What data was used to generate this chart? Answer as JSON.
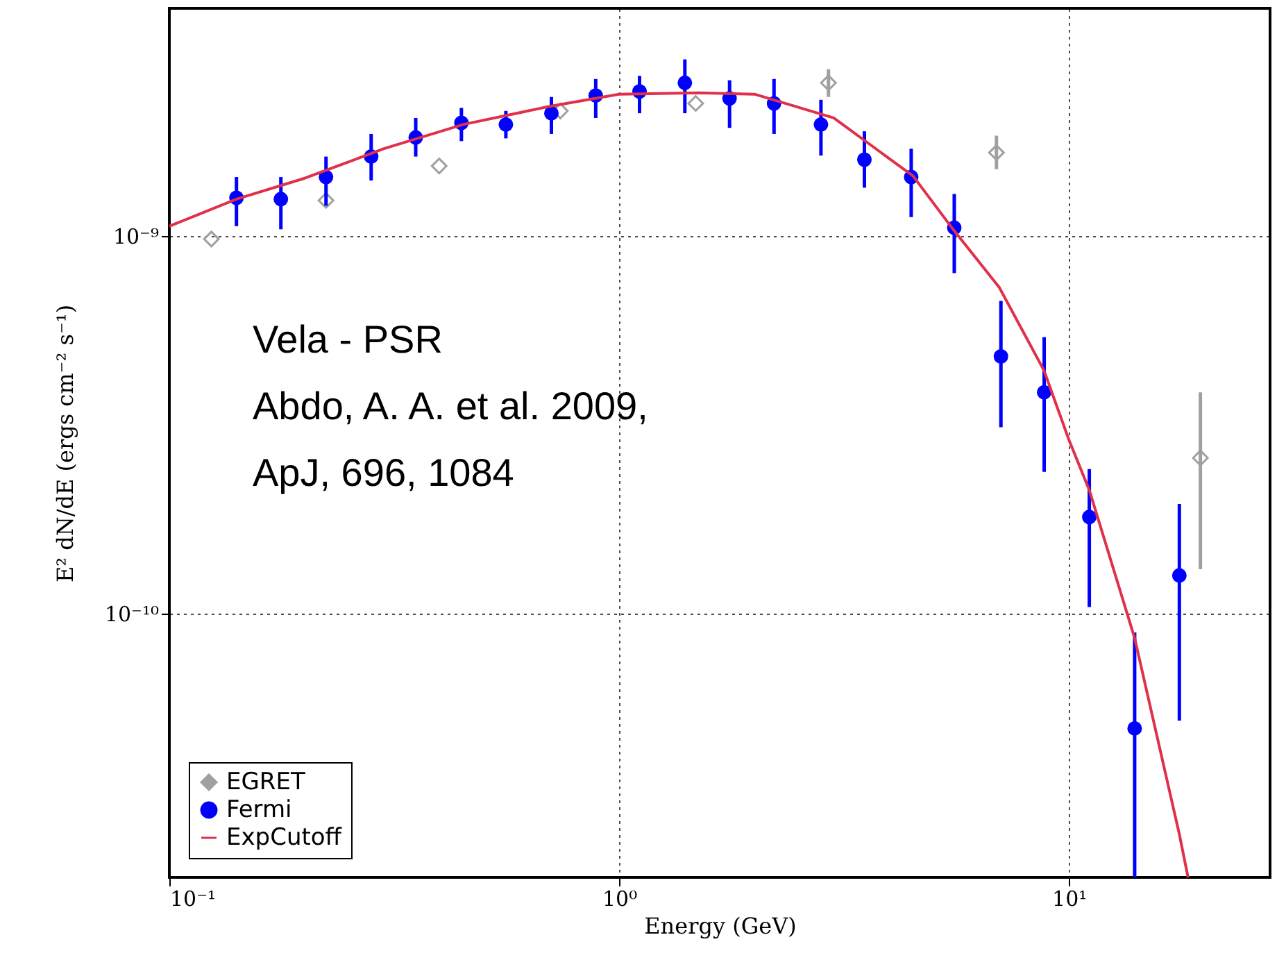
{
  "chart_data": {
    "type": "scatter",
    "xlabel": "Energy (GeV)",
    "ylabel": "E² dN/dE (ergs cm⁻² s⁻¹)",
    "log": "xy",
    "grid": true,
    "legend": "bottom left",
    "xlim": [
      0.1,
      28
    ],
    "ylim": [
      2e-11,
      4e-09
    ],
    "xticks": [
      {
        "value": 0.1,
        "label": "10⁻¹"
      },
      {
        "value": 1,
        "label": "10⁰"
      },
      {
        "value": 10,
        "label": "10¹"
      }
    ],
    "yticks": [
      {
        "value": 1e-10,
        "label": "10⁻¹⁰"
      },
      {
        "value": 1e-09,
        "label": "10⁻⁹"
      }
    ],
    "annotations": [
      "Vela - PSR",
      "Abdo, A. A. et al. 2009,",
      "ApJ, 696, 1084"
    ],
    "series": [
      {
        "name": "EGRET",
        "color": "#a0a0a0",
        "marker": "diamond",
        "x": [
          0.124,
          0.223,
          0.398,
          0.74,
          1.48,
          2.92,
          6.9,
          19.6
        ],
        "values": [
          9.8e-10,
          1.24e-09,
          1.53e-09,
          2.14e-09,
          2.24e-09,
          2.54e-09,
          1.66e-09,
          2.58e-10
        ],
        "errors": [
          null,
          null,
          null,
          null,
          null,
          [
            2.33e-09,
            2.76e-09
          ],
          [
            1.5e-09,
            1.84e-09
          ],
          [
            1.31e-10,
            3.85e-10
          ]
        ]
      },
      {
        "name": "Fermi",
        "color": "#0000ff",
        "marker": "circle",
        "x": [
          0.141,
          0.177,
          0.223,
          0.281,
          0.353,
          0.446,
          0.56,
          0.707,
          0.887,
          1.11,
          1.4,
          1.76,
          2.21,
          2.81,
          3.51,
          4.46,
          5.56,
          7.06,
          8.81,
          11.1,
          14.0,
          17.6
        ],
        "values": [
          1.26e-09,
          1.25e-09,
          1.43e-09,
          1.62e-09,
          1.82e-09,
          1.99e-09,
          1.97e-09,
          2.11e-09,
          2.35e-09,
          2.41e-09,
          2.54e-09,
          2.31e-09,
          2.24e-09,
          1.97e-09,
          1.59e-09,
          1.43e-09,
          1.05e-09,
          4.79e-10,
          3.85e-10,
          1.8e-10,
          4.96e-11,
          1.26e-10
        ],
        "errors": [
          [
            1.06e-09,
            1.43e-09
          ],
          [
            1.04e-09,
            1.43e-09
          ],
          [
            1.2e-09,
            1.62e-09
          ],
          [
            1.4e-09,
            1.86e-09
          ],
          [
            1.62e-09,
            2.05e-09
          ],
          [
            1.78e-09,
            2.18e-09
          ],
          [
            1.81e-09,
            2.14e-09
          ],
          [
            1.86e-09,
            2.33e-09
          ],
          [
            2.05e-09,
            2.6e-09
          ],
          [
            2.11e-09,
            2.65e-09
          ],
          [
            2.11e-09,
            2.93e-09
          ],
          [
            1.93e-09,
            2.58e-09
          ],
          [
            1.86e-09,
            2.6e-09
          ],
          [
            1.63e-09,
            2.29e-09
          ],
          [
            1.34e-09,
            1.89e-09
          ],
          [
            1.12e-09,
            1.7e-09
          ],
          [
            7.96e-10,
            1.29e-09
          ],
          [
            3.11e-10,
            6.72e-10
          ],
          [
            2.37e-10,
            5.39e-10
          ],
          [
            1.04e-10,
            2.41e-10
          ],
          [
            2e-11,
            8.9e-11
          ],
          [
            5.2e-11,
            1.95e-10
          ]
        ]
      },
      {
        "name": "ExpCutoff",
        "type": "line",
        "color": "#e0304a",
        "marker": "none",
        "line_style": "solid",
        "x": [
          0.1,
          0.141,
          0.2,
          0.3,
          0.45,
          0.7,
          1.0,
          1.5,
          2.0,
          3.0,
          4.5,
          5.56,
          7.0,
          8.8,
          10,
          11.1,
          14,
          17.6,
          18.4
        ],
        "values": [
          1.06e-09,
          1.25e-09,
          1.42e-09,
          1.7e-09,
          1.97e-09,
          2.2e-09,
          2.37e-09,
          2.39e-09,
          2.37e-09,
          2.05e-09,
          1.44e-09,
          1.03e-09,
          7.3e-10,
          4.4e-10,
          2.88e-10,
          2.12e-10,
          8.6e-11,
          2.6e-11,
          2e-11
        ]
      }
    ]
  }
}
